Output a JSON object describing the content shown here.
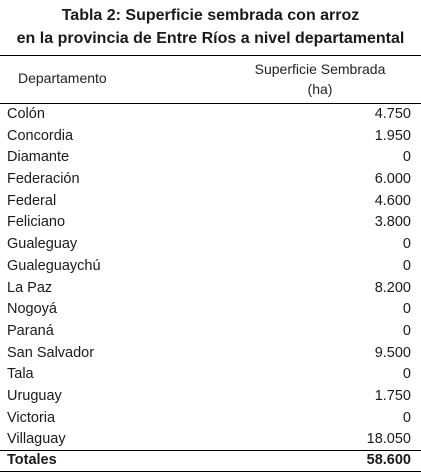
{
  "title": {
    "line1": "Tabla 2: Superficie sembrada con arroz",
    "line2": "en la provincia de Entre Ríos a nivel departamental"
  },
  "table": {
    "header_departamento": "Departamento",
    "header_superficie_line1": "Superficie Sembrada",
    "header_superficie_line2": "(ha)",
    "rows": [
      {
        "departamento": "Colón",
        "superficie": "4.750"
      },
      {
        "departamento": "Concordia",
        "superficie": "1.950"
      },
      {
        "departamento": "Diamante",
        "superficie": "0"
      },
      {
        "departamento": "Federación",
        "superficie": "6.000"
      },
      {
        "departamento": "Federal",
        "superficie": "4.600"
      },
      {
        "departamento": "Feliciano",
        "superficie": "3.800"
      },
      {
        "departamento": "Gualeguay",
        "superficie": "0"
      },
      {
        "departamento": "Gualeguaychú",
        "superficie": "0"
      },
      {
        "departamento": "La Paz",
        "superficie": "8.200"
      },
      {
        "departamento": "Nogoyá",
        "superficie": "0"
      },
      {
        "departamento": "Paraná",
        "superficie": "0"
      },
      {
        "departamento": "San Salvador",
        "superficie": "9.500"
      },
      {
        "departamento": "Tala",
        "superficie": "0"
      },
      {
        "departamento": "Uruguay",
        "superficie": "1.750"
      },
      {
        "departamento": "Victoria",
        "superficie": "0"
      },
      {
        "departamento": "Villaguay",
        "superficie": "18.050"
      }
    ],
    "total_label": "Totales",
    "total_value": "58.600"
  }
}
